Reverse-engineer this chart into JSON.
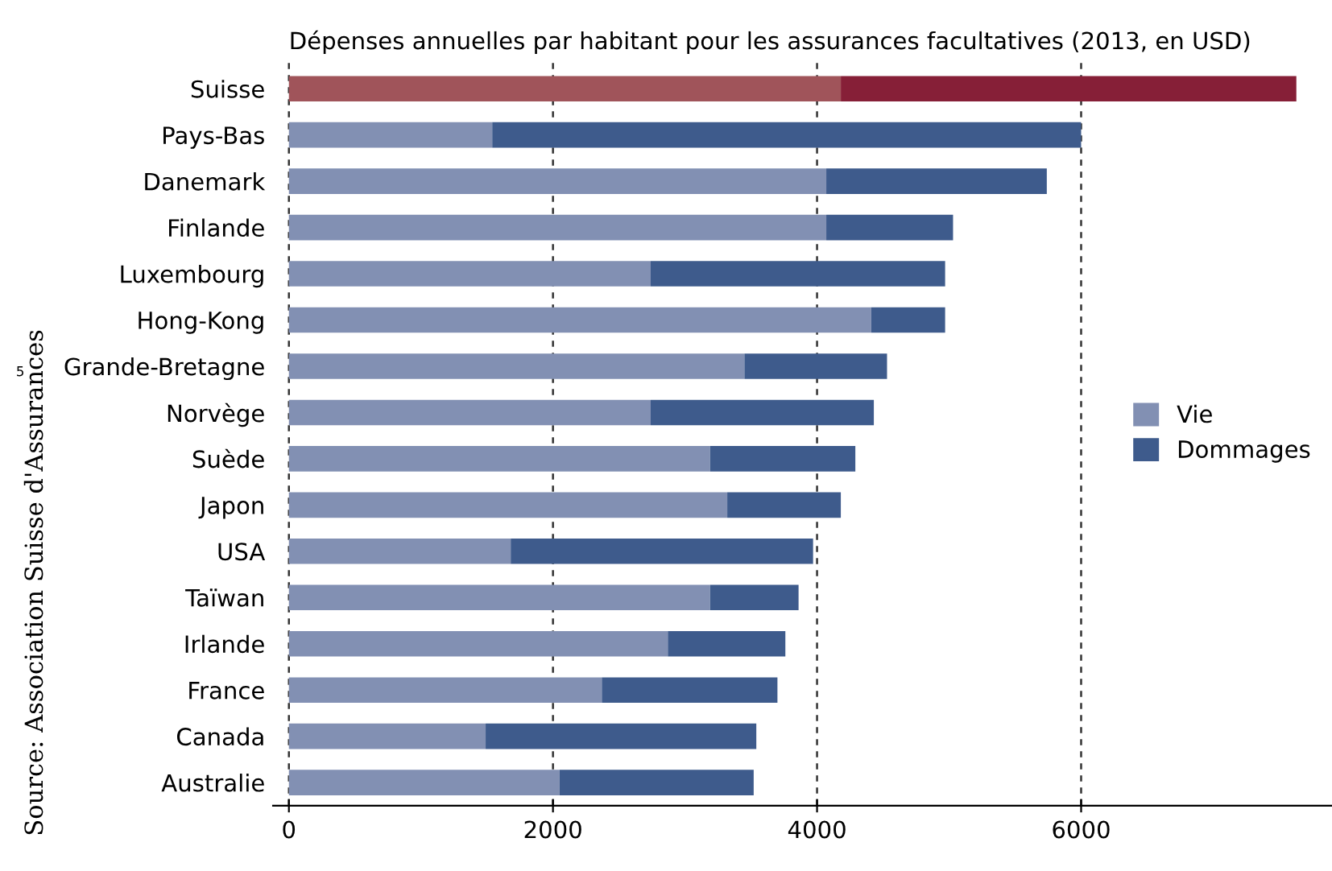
{
  "chart_data": {
    "type": "bar",
    "orientation": "horizontal",
    "stacked": true,
    "title": "Dépenses annuelles par habitant pour les assurances facultatives (2013, en USD)",
    "categories": [
      "Suisse",
      "Pays-Bas",
      "Danemark",
      "Finlande",
      "Luxembourg",
      "Hong-Kong",
      "Grande-Bretagne",
      "Norvège",
      "Suède",
      "Japon",
      "USA",
      "Taïwan",
      "Irlande",
      "France",
      "Canada",
      "Australie"
    ],
    "series": [
      {
        "name": "Vie",
        "color": "#8290b3",
        "colors": [
          "#a0545a",
          "#8290b3",
          "#8290b3",
          "#8290b3",
          "#8290b3",
          "#8290b3",
          "#8290b3",
          "#8290b3",
          "#8290b3",
          "#8290b3",
          "#8290b3",
          "#8290b3",
          "#8290b3",
          "#8290b3",
          "#8290b3",
          "#8290b3"
        ],
        "values": [
          4180,
          1540,
          4070,
          4070,
          2740,
          4410,
          3450,
          2740,
          3190,
          3320,
          1680,
          3190,
          2870,
          2370,
          1490,
          2050
        ]
      },
      {
        "name": "Dommages",
        "color": "#3e5b8c",
        "colors": [
          "#861f37",
          "#3e5b8c",
          "#3e5b8c",
          "#3e5b8c",
          "#3e5b8c",
          "#3e5b8c",
          "#3e5b8c",
          "#3e5b8c",
          "#3e5b8c",
          "#3e5b8c",
          "#3e5b8c",
          "#3e5b8c",
          "#3e5b8c",
          "#3e5b8c",
          "#3e5b8c",
          "#3e5b8c"
        ],
        "values": [
          3450,
          4460,
          1670,
          960,
          2230,
          560,
          1080,
          1690,
          1100,
          860,
          2290,
          670,
          890,
          1330,
          2050,
          1470
        ]
      }
    ],
    "xlim": [
      -120,
      7900
    ],
    "xticks": [
      0,
      2000,
      4000,
      6000
    ],
    "grid": "x",
    "legend": "right",
    "annotations": [
      "Source: Association Suisse d'Assurances",
      "5"
    ]
  }
}
